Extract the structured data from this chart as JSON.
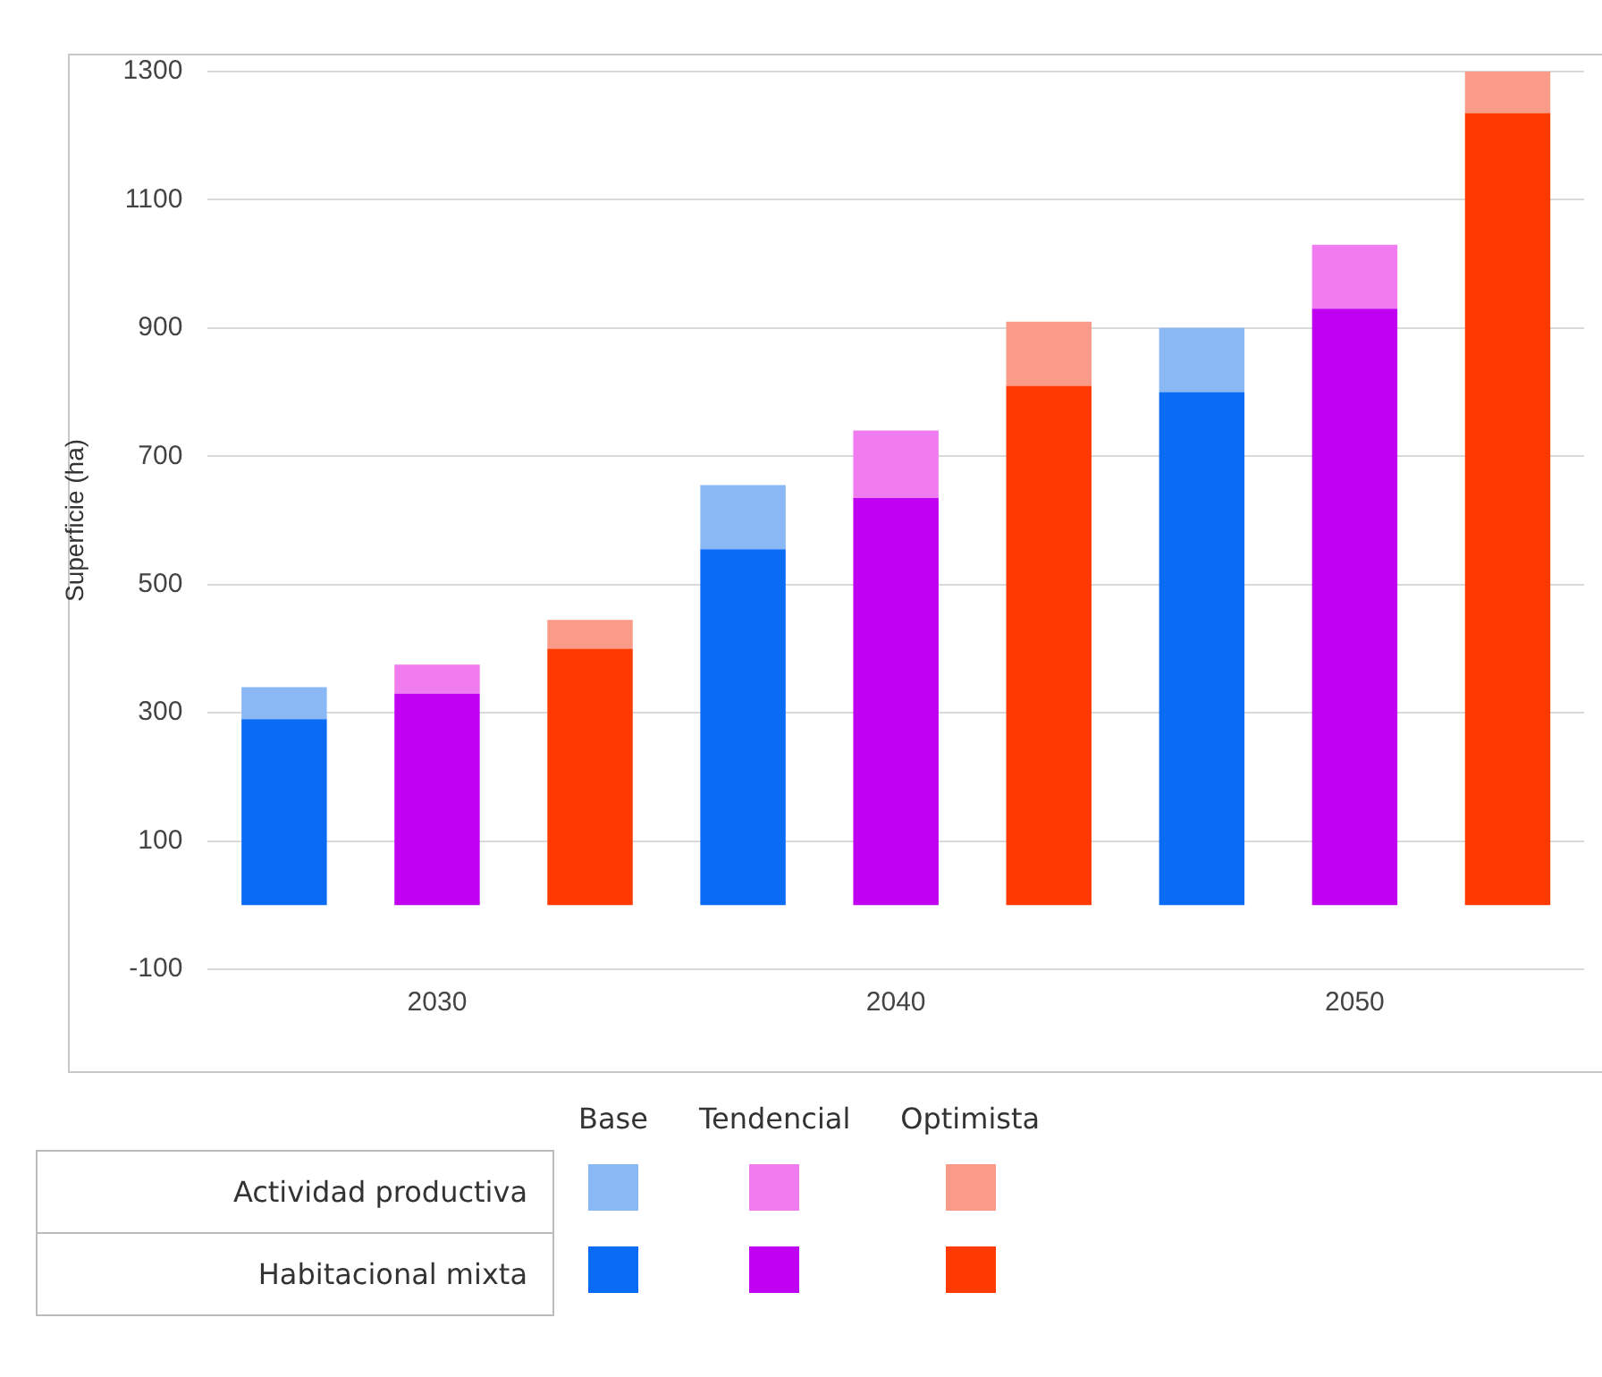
{
  "chart_data": {
    "type": "bar",
    "stacked": true,
    "ylabel": "Superficie (ha)",
    "categories": [
      null,
      "2030",
      null,
      null,
      "2040",
      null,
      null,
      "2050",
      null
    ],
    "series": [
      {
        "name": "Habitacional mixta",
        "colors": [
          "#0a6cf5",
          "#c000f0",
          "#ff3a00",
          "#0a6cf5",
          "#c000f0",
          "#ff3a00",
          "#0a6cf5",
          "#c000f0",
          "#ff3a00"
        ],
        "values": [
          290,
          330,
          400,
          555,
          635,
          810,
          800,
          930,
          1235
        ]
      },
      {
        "name": "Actividad productiva",
        "colors": [
          "#8ab8f5",
          "#f07cf0",
          "#fa9a88",
          "#8ab8f5",
          "#f07cf0",
          "#fa9a88",
          "#8ab8f5",
          "#f07cf0",
          "#fa9a88"
        ],
        "values": [
          50,
          45,
          45,
          100,
          105,
          100,
          100,
          100,
          65
        ]
      }
    ],
    "annotations": [
      "Base",
      "Tendencial",
      "Optimista"
    ],
    "ylim": [
      -100,
      1300
    ],
    "yticks": [
      -100,
      100,
      300,
      500,
      700,
      900,
      1100,
      1300
    ],
    "grid": "y",
    "legend": "bottom"
  }
}
